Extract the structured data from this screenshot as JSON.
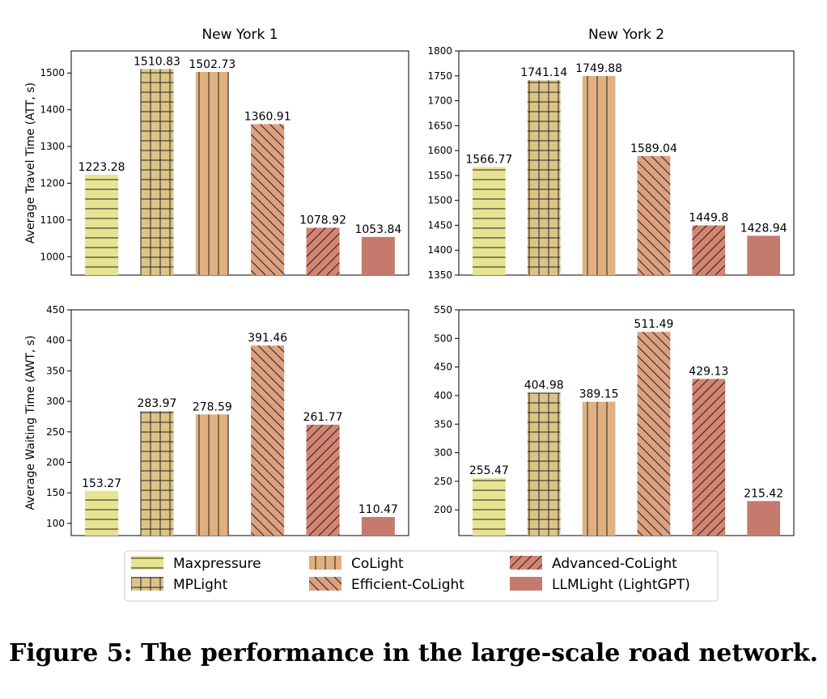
{
  "figure": {
    "caption": "Figure 5: The performance in the large-scale road network."
  },
  "methods": [
    {
      "name": "Maxpressure",
      "color": "#e8e391",
      "hatch": "horizontal"
    },
    {
      "name": "MPLight",
      "color": "#dcc488",
      "hatch": "grid"
    },
    {
      "name": "CoLight",
      "color": "#e0b080",
      "hatch": "vertical"
    },
    {
      "name": "Efficient-CoLight",
      "color": "#dda07e",
      "hatch": "backslash"
    },
    {
      "name": "Advanced-CoLight",
      "color": "#d48470",
      "hatch": "slash"
    },
    {
      "name": "LLMLight (LightGPT)",
      "color": "#c47b6d",
      "hatch": "none"
    }
  ],
  "chart_data": [
    {
      "type": "bar",
      "title": "New York 1",
      "ylabel": "Average Travel Time (ATT, s)",
      "categories": [
        "Maxpressure",
        "MPLight",
        "CoLight",
        "Efficient-CoLight",
        "Advanced-CoLight",
        "LLMLight (LightGPT)"
      ],
      "values": [
        1223.28,
        1510.83,
        1502.73,
        1360.91,
        1078.92,
        1053.84
      ],
      "labels": [
        "1223.28",
        "1510.83",
        "1502.73",
        "1360.91",
        "1078.92",
        "1053.84"
      ],
      "ylim": [
        950,
        1560
      ],
      "yticks": [
        1000,
        1100,
        1200,
        1300,
        1400,
        1500
      ]
    },
    {
      "type": "bar",
      "title": "New York 2",
      "ylabel": "",
      "categories": [
        "Maxpressure",
        "MPLight",
        "CoLight",
        "Efficient-CoLight",
        "Advanced-CoLight",
        "LLMLight (LightGPT)"
      ],
      "values": [
        1566.77,
        1741.14,
        1749.88,
        1589.04,
        1449.8,
        1428.94
      ],
      "labels": [
        "1566.77",
        "1741.14",
        "1749.88",
        "1589.04",
        "1449.8",
        "1428.94"
      ],
      "ylim": [
        1350,
        1800
      ],
      "yticks": [
        1350,
        1400,
        1450,
        1500,
        1550,
        1600,
        1650,
        1700,
        1750,
        1800
      ]
    },
    {
      "type": "bar",
      "title": "",
      "ylabel": "Average Waiting Time (AWT, s)",
      "categories": [
        "Maxpressure",
        "MPLight",
        "CoLight",
        "Efficient-CoLight",
        "Advanced-CoLight",
        "LLMLight (LightGPT)"
      ],
      "values": [
        153.27,
        283.97,
        278.59,
        391.46,
        261.77,
        110.47
      ],
      "labels": [
        "153.27",
        "283.97",
        "278.59",
        "391.46",
        "261.77",
        "110.47"
      ],
      "ylim": [
        80,
        450
      ],
      "yticks": [
        100,
        150,
        200,
        250,
        300,
        350,
        400,
        450
      ]
    },
    {
      "type": "bar",
      "title": "",
      "ylabel": "",
      "categories": [
        "Maxpressure",
        "MPLight",
        "CoLight",
        "Efficient-CoLight",
        "Advanced-CoLight",
        "LLMLight (LightGPT)"
      ],
      "values": [
        255.47,
        404.98,
        389.15,
        511.49,
        429.13,
        215.42
      ],
      "labels": [
        "255.47",
        "404.98",
        "389.15",
        "511.49",
        "429.13",
        "215.42"
      ],
      "ylim": [
        155,
        550
      ],
      "yticks": [
        200,
        250,
        300,
        350,
        400,
        450,
        500,
        550
      ]
    }
  ]
}
